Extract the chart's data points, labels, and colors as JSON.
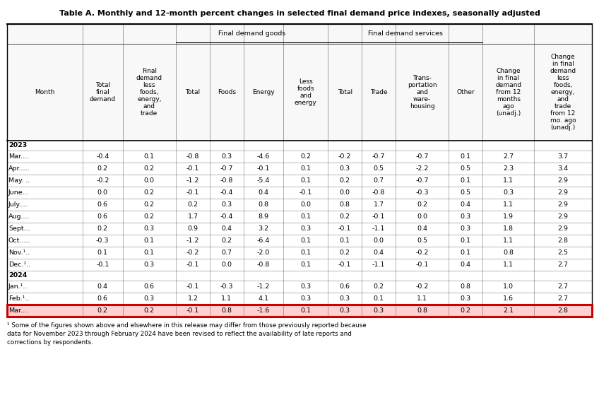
{
  "title": "Table A. Monthly and 12-month percent changes in selected final demand price indexes, seasonally adjusted",
  "col_labels": [
    "Month",
    "Total\nfinal\ndemand",
    "Final\ndemand\nless\nfoods,\nenergy,\nand\ntrade",
    "Total",
    "Foods",
    "Energy",
    "Less\nfoods\nand\nenergy",
    "Total",
    "Trade",
    "Trans-\nportation\nand\nware-\nhousing",
    "Other",
    "Change\nin final\ndemand\nfrom 12\nmonths\nago\n(unadj.)",
    "Change\nin final\ndemand\nless\nfoods,\nenergy,\nand\ntrade\nfrom 12\nmo. ago\n(unadj.)"
  ],
  "goods_span": [
    3,
    6
  ],
  "services_span": [
    7,
    10
  ],
  "rows": [
    {
      "month": "2023",
      "bold": true,
      "data": null,
      "highlight": false
    },
    {
      "month": "Mar....",
      "bold": false,
      "data": [
        -0.4,
        0.1,
        -0.8,
        0.3,
        -4.6,
        0.2,
        -0.2,
        -0.7,
        -0.7,
        0.1,
        2.7,
        3.7
      ],
      "highlight": false
    },
    {
      "month": "Apr.....",
      "bold": false,
      "data": [
        0.2,
        0.2,
        -0.1,
        -0.7,
        -0.1,
        0.1,
        0.3,
        0.5,
        -2.2,
        0.5,
        2.3,
        3.4
      ],
      "highlight": false
    },
    {
      "month": "May. ..",
      "bold": false,
      "data": [
        -0.2,
        0.0,
        -1.2,
        -0.8,
        -5.4,
        0.1,
        0.2,
        0.7,
        -0.7,
        0.1,
        1.1,
        2.9
      ],
      "highlight": false
    },
    {
      "month": "June...",
      "bold": false,
      "data": [
        0.0,
        0.2,
        -0.1,
        -0.4,
        0.4,
        -0.1,
        0.0,
        -0.8,
        -0.3,
        0.5,
        0.3,
        2.9
      ],
      "highlight": false
    },
    {
      "month": "July....",
      "bold": false,
      "data": [
        0.6,
        0.2,
        0.2,
        0.3,
        0.8,
        0.0,
        0.8,
        1.7,
        0.2,
        0.4,
        1.1,
        2.9
      ],
      "highlight": false
    },
    {
      "month": "Aug....",
      "bold": false,
      "data": [
        0.6,
        0.2,
        1.7,
        -0.4,
        8.9,
        0.1,
        0.2,
        -0.1,
        0.0,
        0.3,
        1.9,
        2.9
      ],
      "highlight": false
    },
    {
      "month": "Sept...",
      "bold": false,
      "data": [
        0.2,
        0.3,
        0.9,
        0.4,
        3.2,
        0.3,
        -0.1,
        -1.1,
        0.4,
        0.3,
        1.8,
        2.9
      ],
      "highlight": false
    },
    {
      "month": "Oct.....",
      "bold": false,
      "data": [
        -0.3,
        0.1,
        -1.2,
        0.2,
        -6.4,
        0.1,
        0.1,
        0.0,
        0.5,
        0.1,
        1.1,
        2.8
      ],
      "highlight": false
    },
    {
      "month": "Nov.¹..",
      "bold": false,
      "data": [
        0.1,
        0.1,
        -0.2,
        0.7,
        -2.0,
        0.1,
        0.2,
        0.4,
        -0.2,
        0.1,
        0.8,
        2.5
      ],
      "highlight": false
    },
    {
      "month": "Dec.¹..",
      "bold": false,
      "data": [
        -0.1,
        0.3,
        -0.1,
        0.0,
        -0.8,
        0.1,
        -0.1,
        -1.1,
        -0.1,
        0.4,
        1.1,
        2.7
      ],
      "highlight": false
    },
    {
      "month": "2024",
      "bold": true,
      "data": null,
      "highlight": false
    },
    {
      "month": "Jan.¹..",
      "bold": false,
      "data": [
        0.4,
        0.6,
        -0.1,
        -0.3,
        -1.2,
        0.3,
        0.6,
        0.2,
        -0.2,
        0.8,
        1.0,
        2.7
      ],
      "highlight": false
    },
    {
      "month": "Feb.¹..",
      "bold": false,
      "data": [
        0.6,
        0.3,
        1.2,
        1.1,
        4.1,
        0.3,
        0.3,
        0.1,
        1.1,
        0.3,
        1.6,
        2.7
      ],
      "highlight": false
    },
    {
      "month": "Mar....",
      "bold": false,
      "data": [
        0.2,
        0.2,
        -0.1,
        0.8,
        -1.6,
        0.1,
        0.3,
        0.3,
        0.8,
        0.2,
        2.1,
        2.8
      ],
      "highlight": true
    }
  ],
  "footnote": "¹ Some of the figures shown above and elsewhere in this release may differ from those previously reported because\ndata for November 2023 through February 2024 have been revised to reflect the availability of late reports and\ncorrections by respondents.",
  "highlight_color": "#ffd0d0",
  "border_color": "#cc0000",
  "bg_color": "#ffffff",
  "col_widths_raw": [
    8.5,
    4.5,
    6.0,
    3.8,
    3.8,
    4.5,
    5.0,
    3.8,
    3.8,
    6.0,
    3.8,
    5.8,
    6.5
  ],
  "font_size": 6.8,
  "title_font_size": 8.0
}
